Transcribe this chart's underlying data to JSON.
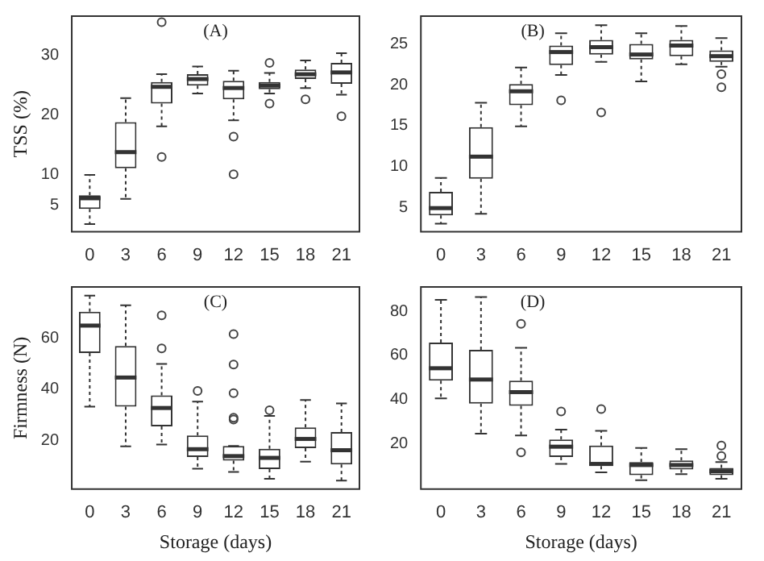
{
  "chart_data": [
    {
      "type": "box",
      "title": "(A)",
      "ylabel": "TSS (%)",
      "categories": [
        "0",
        "3",
        "6",
        "9",
        "12",
        "15",
        "18",
        "21"
      ],
      "ylim": [
        0.5,
        36.5
      ],
      "yticks": [
        5,
        10,
        20,
        30
      ],
      "boxes": [
        {
          "low": 1.8,
          "q1": 4.3,
          "median": 6.1,
          "q3": 6.6,
          "high": 10
        },
        {
          "low": 6,
          "q1": 11.1,
          "median": 13.8,
          "q3": 18.8,
          "high": 22.8
        },
        {
          "low": 18.1,
          "q1": 21.9,
          "median": 24.7,
          "q3": 25.5,
          "high": 26.8,
          "outliers": [
            35.5,
            13
          ]
        },
        {
          "low": 23.6,
          "q1": 24.9,
          "median": 26,
          "q3": 26.8,
          "high": 28.1
        },
        {
          "low": 19.1,
          "q1": 22.6,
          "median": 24.5,
          "q3": 25.7,
          "high": 27.4,
          "outliers": [
            16.4,
            10.1
          ]
        },
        {
          "low": 23.6,
          "q1": 24.3,
          "median": 24.9,
          "q3": 25.5,
          "high": 27,
          "outliers": [
            28.7,
            21.9
          ]
        },
        {
          "low": 24.5,
          "q1": 26,
          "median": 26.8,
          "q3": 27.6,
          "high": 29.1,
          "outliers": [
            22.6
          ]
        },
        {
          "low": 23.4,
          "q1": 25.2,
          "median": 27.1,
          "q3": 28.7,
          "high": 30.3,
          "outliers": [
            19.8
          ]
        }
      ]
    },
    {
      "type": "box",
      "title": "(B)",
      "categories": [
        "0",
        "3",
        "6",
        "9",
        "12",
        "15",
        "18",
        "21"
      ],
      "ylim": [
        2,
        28.4
      ],
      "yticks": [
        5,
        10,
        15,
        20,
        25
      ],
      "boxes": [
        {
          "low": 3,
          "q1": 4,
          "median": 4.9,
          "q3": 6.9,
          "high": 8.6
        },
        {
          "low": 4.2,
          "q1": 8.5,
          "median": 11.2,
          "q3": 14.8,
          "high": 17.8
        },
        {
          "low": 14.9,
          "q1": 17.5,
          "median": 19.2,
          "q3": 20.1,
          "high": 22.1
        },
        {
          "low": 21.2,
          "q1": 22.4,
          "median": 24,
          "q3": 24.8,
          "high": 26.3,
          "outliers": [
            18.1
          ]
        },
        {
          "low": 22.8,
          "q1": 23.7,
          "median": 24.6,
          "q3": 25.5,
          "high": 27.3,
          "outliers": [
            16.6
          ]
        },
        {
          "low": 20.4,
          "q1": 23.1,
          "median": 23.7,
          "q3": 25,
          "high": 26.3
        },
        {
          "low": 22.5,
          "q1": 23.5,
          "median": 24.8,
          "q3": 25.5,
          "high": 27.2
        },
        {
          "low": 22.2,
          "q1": 22.8,
          "median": 23.5,
          "q3": 24.2,
          "high": 25.7,
          "outliers": [
            21.3,
            19.7
          ]
        }
      ]
    },
    {
      "type": "box",
      "title": "(C)",
      "xlabel": "Storage (days)",
      "ylabel": "Firmness (N)",
      "categories": [
        "0",
        "3",
        "6",
        "9",
        "12",
        "15",
        "18",
        "21"
      ],
      "ylim": [
        1,
        80
      ],
      "yticks": [
        20,
        40,
        60
      ],
      "boxes": [
        {
          "low": 33.2,
          "q1": 54.2,
          "median": 64.9,
          "q3": 70.3,
          "high": 76.6
        },
        {
          "low": 17.7,
          "q1": 33.2,
          "median": 44.6,
          "q3": 56.9,
          "high": 72.8
        },
        {
          "low": 18.4,
          "q1": 25.5,
          "median": 32.7,
          "q3": 37.6,
          "high": 49.9,
          "outliers": [
            68.9,
            56
          ]
        },
        {
          "low": 9,
          "q1": 13.5,
          "median": 16.6,
          "q3": 22,
          "high": 35.2,
          "outliers": [
            39.4
          ]
        },
        {
          "low": 7.7,
          "q1": 12.1,
          "median": 13.9,
          "q3": 17.9,
          "high": 17.9,
          "outliers": [
            28.9,
            28.2,
            38.5,
            49.7,
            61.6
          ]
        },
        {
          "low": 5,
          "q1": 8.8,
          "median": 13.2,
          "q3": 16.8,
          "high": 29.6,
          "outliers": [
            31.8
          ]
        },
        {
          "low": 11.7,
          "q1": 17,
          "median": 20.6,
          "q3": 25.1,
          "high": 35.8
        },
        {
          "low": 4.3,
          "q1": 10.6,
          "median": 16.2,
          "q3": 23.3,
          "high": 34.5
        }
      ]
    },
    {
      "type": "box",
      "title": "(D)",
      "xlabel": "Storage (days)",
      "categories": [
        "0",
        "3",
        "6",
        "9",
        "12",
        "15",
        "18",
        "21"
      ],
      "ylim": [
        -0.5,
        91
      ],
      "yticks": [
        20,
        40,
        60,
        80
      ],
      "boxes": [
        {
          "low": 40.6,
          "q1": 48.6,
          "median": 54.2,
          "q3": 65.8,
          "high": 85.2
        },
        {
          "low": 24.6,
          "q1": 38.2,
          "median": 49.1,
          "q3": 62.5,
          "high": 86.4
        },
        {
          "low": 23.8,
          "q1": 37.2,
          "median": 43.4,
          "q3": 48.6,
          "high": 63.5,
          "outliers": [
            74.3,
            16.1
          ]
        },
        {
          "low": 10.9,
          "q1": 14,
          "median": 18.7,
          "q3": 22,
          "high": 26.4,
          "outliers": [
            34.6
          ]
        },
        {
          "low": 7.1,
          "q1": 9.9,
          "median": 10.9,
          "q3": 19.2,
          "high": 25.9,
          "outliers": [
            35.7
          ]
        },
        {
          "low": 3.5,
          "q1": 5.8,
          "median": 10.4,
          "q3": 11.7,
          "high": 18.1
        },
        {
          "low": 6.3,
          "q1": 8.4,
          "median": 10.4,
          "q3": 12.5,
          "high": 17.6
        },
        {
          "low": 4.2,
          "q1": 5.8,
          "median": 7.6,
          "q3": 9.1,
          "high": 11.7,
          "outliers": [
            19.2,
            14.5
          ]
        }
      ]
    }
  ]
}
